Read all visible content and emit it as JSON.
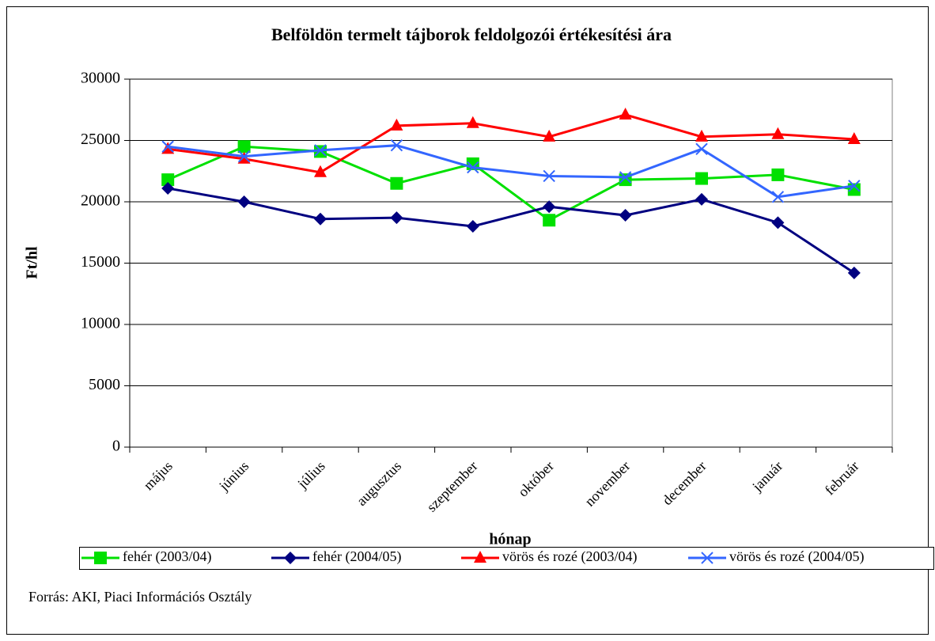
{
  "chart_data": {
    "type": "line",
    "title": "Belföldön termelt tájborok feldolgozói értékesítési ára",
    "x_label": "hónap",
    "y_label": "Ft/hl",
    "categories": [
      "május",
      "június",
      "július",
      "augusztus",
      "szeptember",
      "október",
      "november",
      "december",
      "január",
      "február"
    ],
    "series": [
      {
        "name": "fehér (2003/04)",
        "color": "#00e000",
        "marker": "square",
        "values": [
          21800,
          24500,
          24100,
          21500,
          23100,
          18500,
          21800,
          21900,
          22200,
          21000
        ]
      },
      {
        "name": "fehér (2004/05)",
        "color": "#000080",
        "marker": "diamond",
        "values": [
          21100,
          20000,
          18600,
          18700,
          18000,
          19600,
          18900,
          20200,
          18300,
          14200
        ]
      },
      {
        "name": "vörös és rozé (2003/04)",
        "color": "#ff0000",
        "marker": "triangle",
        "values": [
          24300,
          23500,
          22400,
          26200,
          26400,
          25300,
          27100,
          25300,
          25500,
          25100
        ]
      },
      {
        "name": "vörös és rozé (2004/05)",
        "color": "#3366ff",
        "marker": "x",
        "values": [
          24500,
          23700,
          24200,
          24600,
          22800,
          22100,
          22000,
          24300,
          20400,
          21300
        ]
      }
    ],
    "ylim": [
      0,
      30000
    ],
    "yticks": [
      0,
      5000,
      10000,
      15000,
      20000,
      25000,
      30000
    ],
    "grid": true,
    "legend": "bottom",
    "source": "Forrás: AKI, Piaci Információs Osztály"
  }
}
